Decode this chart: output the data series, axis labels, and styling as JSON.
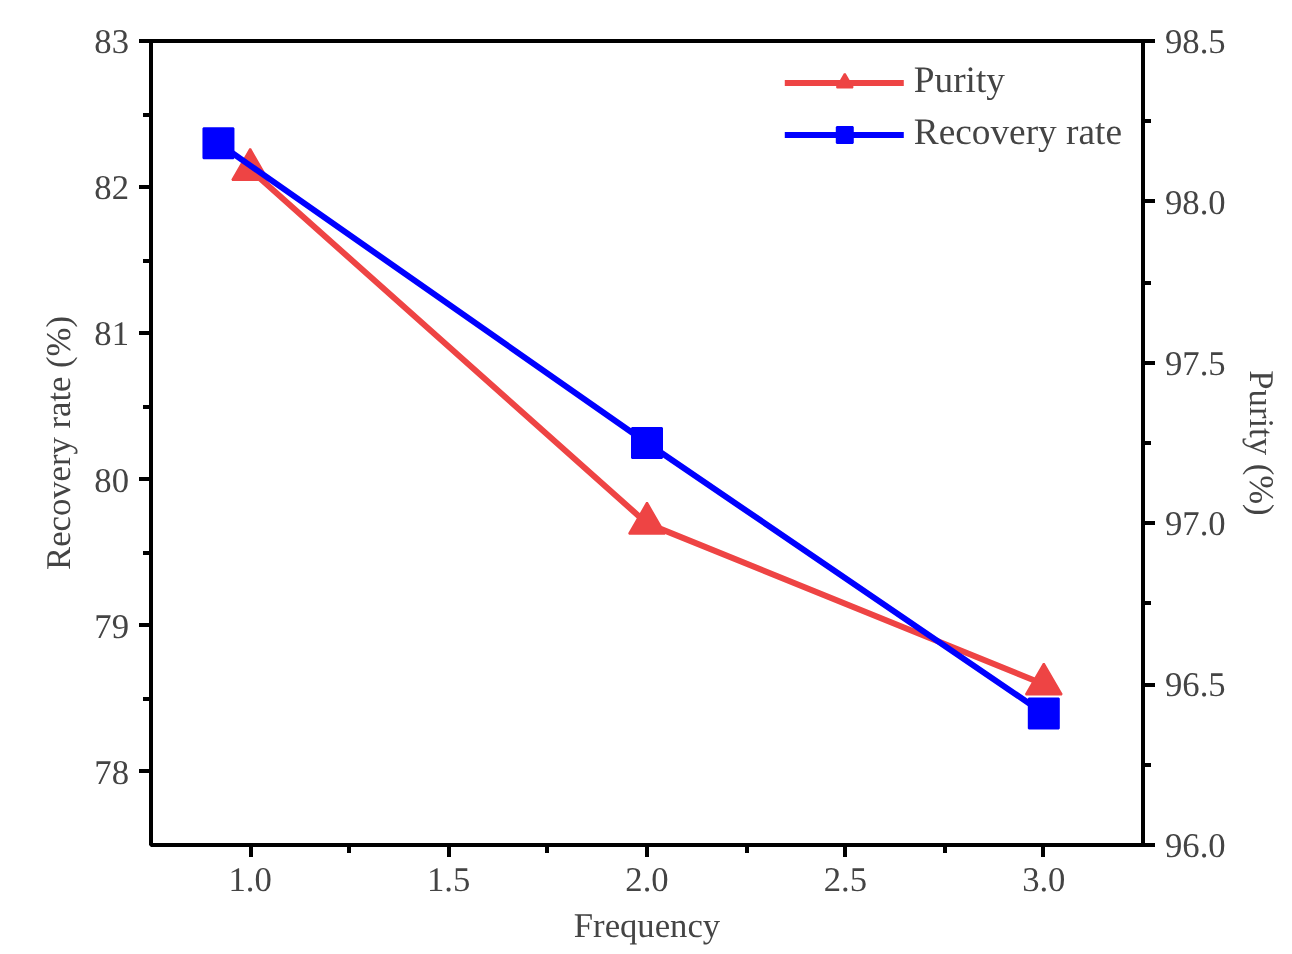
{
  "chart_data": {
    "type": "line",
    "xlabel": "Frequency",
    "ylabel": "Recovery rate (%)",
    "y2label": "Purity (%)",
    "xlim": [
      0.75,
      3.25
    ],
    "xticks": [
      {
        "value": 1.0,
        "label": "1.0"
      },
      {
        "value": 1.5,
        "label": "1.5"
      },
      {
        "value": 2.0,
        "label": "2.0"
      },
      {
        "value": 2.5,
        "label": "2.5"
      },
      {
        "value": 3.0,
        "label": "3.0"
      }
    ],
    "ylim": [
      77.5,
      83
    ],
    "yticks": [
      78,
      79,
      80,
      81,
      82,
      83
    ],
    "y2lim": [
      96.0,
      98.5
    ],
    "y2ticks": [
      {
        "value": 96.0,
        "label": "96.0"
      },
      {
        "value": 96.5,
        "label": "96.5"
      },
      {
        "value": 97.0,
        "label": "97.0"
      },
      {
        "value": 97.5,
        "label": "97.5"
      },
      {
        "value": 98.0,
        "label": "98.0"
      },
      {
        "value": 98.5,
        "label": "98.5"
      }
    ],
    "grid": false,
    "legend": "top right",
    "line_style": "solid",
    "series": [
      {
        "name": "Purity",
        "color": "#ee4444",
        "axis": "y2",
        "marker": "triangle",
        "x": [
          1.0,
          2.0,
          3.0
        ],
        "values": [
          98.1,
          97.0,
          96.5
        ]
      },
      {
        "name": "Recovery rate",
        "color": "#0000ff",
        "marker": "square",
        "x": [
          0.92,
          2.0,
          3.0
        ],
        "values": [
          82.3,
          80.25,
          78.4
        ]
      }
    ]
  }
}
